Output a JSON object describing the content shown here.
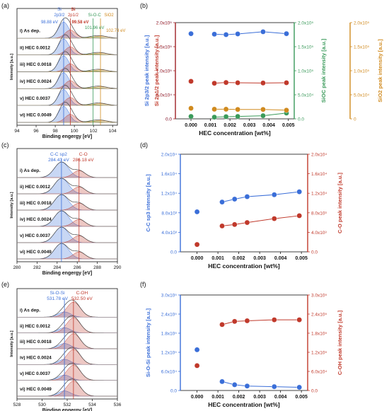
{
  "panels": [
    {
      "label": "(a)"
    },
    {
      "label": "(b)"
    },
    {
      "label": "(c)"
    },
    {
      "label": "(d)"
    },
    {
      "label": "(e)"
    },
    {
      "label": "(f)"
    }
  ],
  "colors": {
    "blue": "#3a6ed8",
    "red": "#c0392b",
    "green": "#3a9a5a",
    "orange": "#d08a1e",
    "spectrum_blue": "#4a7fe0",
    "spectrum_red": "#e0605a"
  },
  "chart_data": [
    {
      "id": "a",
      "type": "area",
      "xlabel": "Binding engergy [eV]",
      "ylabel": "Intensity [a.u.]",
      "xlim": [
        94,
        104.5
      ],
      "xticks": [
        "94",
        "96",
        "98",
        "100",
        "102",
        "104"
      ],
      "series": [
        {
          "name": "i) As dep."
        },
        {
          "name": "ii) HEC 0.0012"
        },
        {
          "name": "iii) HEC 0.0018"
        },
        {
          "name": "iv) HEC 0.0024"
        },
        {
          "name": "v) HEC 0.0037"
        },
        {
          "name": "vi) HEC 0.0049"
        }
      ],
      "peaks": [
        {
          "label": "Si",
          "sublabel": "2p3/2",
          "value_label": "98.88 eV",
          "center": 98.88,
          "color": "#3a6ed8"
        },
        {
          "label": "Si",
          "sublabel": "2p1/2",
          "value_label": "99.58 eV",
          "center": 99.58,
          "color": "#c0392b"
        },
        {
          "label": "Si-O-C",
          "value_label": "101.96 eV",
          "center": 101.96,
          "color": "#3a9a5a"
        },
        {
          "label": "SiO2",
          "value_label": "102.73 eV",
          "center": 102.73,
          "color": "#d08a1e"
        }
      ]
    },
    {
      "id": "b",
      "type": "scatter",
      "xlabel": "HEC concentration [wt%]",
      "xlim": [
        -0.0008,
        0.0053
      ],
      "xticks": [
        "0.000",
        "0.001",
        "0.002",
        "0.003",
        "0.004",
        "0.005"
      ],
      "x": [
        0,
        0.0012,
        0.0018,
        0.0024,
        0.0037,
        0.0049
      ],
      "axes": [
        {
          "label": "Si 2p3/2 peak intensity [a.u.]",
          "color": "#3a6ed8",
          "ylim": [
            0,
            200000
          ],
          "ticks": [
            "0.0",
            "5.0x10⁴",
            "1.0x10⁵",
            "1.5x10⁵",
            "2.0x10⁵"
          ]
        },
        {
          "label": "Si 2p1/2 peak intensity [a.u.]",
          "color": "#c0392b",
          "ylim": [
            0,
            200000
          ],
          "ticks": [
            "0.0",
            "5.0x10⁴",
            "1.0x10⁵",
            "1.5x10⁵",
            "2.0x10⁵"
          ]
        },
        {
          "label": "SiOC peak intensity [a.u.]",
          "color": "#3a9a5a",
          "ylim": [
            0,
            200000
          ],
          "ticks": [
            "0.0",
            "5.0x10⁴",
            "1.0x10⁵",
            "1.5x10⁵",
            "2.0x10⁵"
          ]
        },
        {
          "label": "SiO2 peak intensity [a.u.]",
          "color": "#d08a1e",
          "ylim": [
            0,
            200000
          ],
          "ticks": [
            "0",
            "5.0x10⁴",
            "1.0x10⁵",
            "1.5x10⁵",
            "2.0x10⁵"
          ]
        }
      ],
      "series": [
        {
          "axis": 0,
          "color": "#3a6ed8",
          "values": [
            177000,
            176000,
            175000,
            176500,
            181000,
            177000
          ]
        },
        {
          "axis": 1,
          "color": "#c0392b",
          "values": [
            78000,
            74000,
            75500,
            75000,
            74500,
            75000
          ]
        },
        {
          "axis": 2,
          "color": "#3a9a5a",
          "values": [
            5000,
            3500,
            4500,
            5000,
            6500,
            12000
          ]
        },
        {
          "axis": 3,
          "color": "#d08a1e",
          "values": [
            22000,
            20000,
            20000,
            19500,
            19500,
            18000
          ]
        }
      ]
    },
    {
      "id": "c",
      "type": "area",
      "xlabel": "Binding engergy [eV]",
      "ylabel": "Intensity [a.u.]",
      "xlim": [
        280,
        290
      ],
      "xticks": [
        "280",
        "282",
        "284",
        "286",
        "288",
        "290"
      ],
      "series": [
        {
          "name": "i) As dep."
        },
        {
          "name": "ii) HEC 0.0012"
        },
        {
          "name": "iii) HEC 0.0018"
        },
        {
          "name": "iv) HEC 0.0024"
        },
        {
          "name": "v) HEC 0.0037"
        },
        {
          "name": "vi) HEC 0.0049"
        }
      ],
      "peaks": [
        {
          "label": "C-C sp2",
          "value_label": "284.43 eV",
          "center": 284.43,
          "color": "#3a6ed8"
        },
        {
          "label": "C-O",
          "value_label": "286.18 eV",
          "center": 286.18,
          "color": "#c0392b"
        }
      ]
    },
    {
      "id": "d",
      "type": "scatter",
      "xlabel": "HEC concentration [wt%]",
      "xlim": [
        -0.0008,
        0.0053
      ],
      "xticks": [
        "0.000",
        "0.001",
        "0.002",
        "0.003",
        "0.004",
        "0.005"
      ],
      "x": [
        0,
        0.0012,
        0.0018,
        0.0024,
        0.0037,
        0.0049
      ],
      "axes": [
        {
          "label": "C-C sp3 intensity [a.u.]",
          "color": "#3a6ed8",
          "ylim": [
            0,
            20000
          ],
          "ticks": [
            "0.0",
            "4.0x10³",
            "8.0x10³",
            "1.2x10⁴",
            "1.6x10⁴",
            "2.0x10⁴"
          ]
        },
        {
          "label": "C-O peak intensity [a.u.]",
          "color": "#c0392b",
          "ylim": [
            0,
            20000
          ],
          "ticks": [
            "0.0",
            "4.0x10³",
            "8.0x10³",
            "1.2x10⁴",
            "1.6x10⁴",
            "2.0x10⁴"
          ]
        }
      ],
      "series": [
        {
          "axis": 0,
          "color": "#3a6ed8",
          "values": [
            8200,
            10200,
            10800,
            11300,
            11700,
            12300
          ]
        },
        {
          "axis": 1,
          "color": "#c0392b",
          "values": [
            1500,
            5300,
            5600,
            6000,
            6800,
            7400
          ]
        }
      ]
    },
    {
      "id": "e",
      "type": "area",
      "xlabel": "Binding engergy [eV]",
      "ylabel": "Intensity [a.u.]",
      "xlim": [
        528,
        536
      ],
      "xticks": [
        "528",
        "530",
        "532",
        "534",
        "536"
      ],
      "series": [
        {
          "name": "i) As dep."
        },
        {
          "name": "ii) HEC 0.0012"
        },
        {
          "name": "iii) HEC 0.0018"
        },
        {
          "name": "iv) HEC 0.0024"
        },
        {
          "name": "v) HEC 0.0037"
        },
        {
          "name": "vi) HEC 0.0049"
        }
      ],
      "peaks": [
        {
          "label": "Si-O-Si",
          "value_label": "531.78 eV",
          "center": 531.78,
          "color": "#3a6ed8"
        },
        {
          "label": "C-OH",
          "value_label": "532.50 eV",
          "center": 532.5,
          "color": "#c0392b"
        }
      ]
    },
    {
      "id": "f",
      "type": "scatter",
      "xlabel": "HEC concentration [wt%]",
      "xlim": [
        -0.0008,
        0.0053
      ],
      "xticks": [
        "0.000",
        "0.001",
        "0.002",
        "0.003",
        "0.004",
        "0.005"
      ],
      "x": [
        0,
        0.0012,
        0.0018,
        0.0024,
        0.0037,
        0.0049
      ],
      "axes": [
        {
          "label": "Si-O-Si peak intensity [a.u.]",
          "color": "#3a6ed8",
          "ylim": [
            0,
            300000
          ],
          "ticks": [
            "0.0",
            "6.0x10⁴",
            "1.2x10⁵",
            "1.8x10⁵",
            "2.4x10⁵",
            "3.0x10⁵"
          ]
        },
        {
          "label": "C-OH peak intensity [a.u.]",
          "color": "#c0392b",
          "ylim": [
            0,
            300000
          ],
          "ticks": [
            "0.0",
            "6.0x10⁴",
            "1.2x10⁵",
            "1.8x10⁵",
            "2.4x10⁵",
            "3.0x10⁵"
          ]
        }
      ],
      "series": [
        {
          "axis": 0,
          "color": "#3a6ed8",
          "values": [
            128000,
            28000,
            18000,
            14000,
            12000,
            10000
          ]
        },
        {
          "axis": 1,
          "color": "#c0392b",
          "values": [
            78000,
            207000,
            217000,
            219000,
            222000,
            222000
          ]
        }
      ]
    }
  ]
}
